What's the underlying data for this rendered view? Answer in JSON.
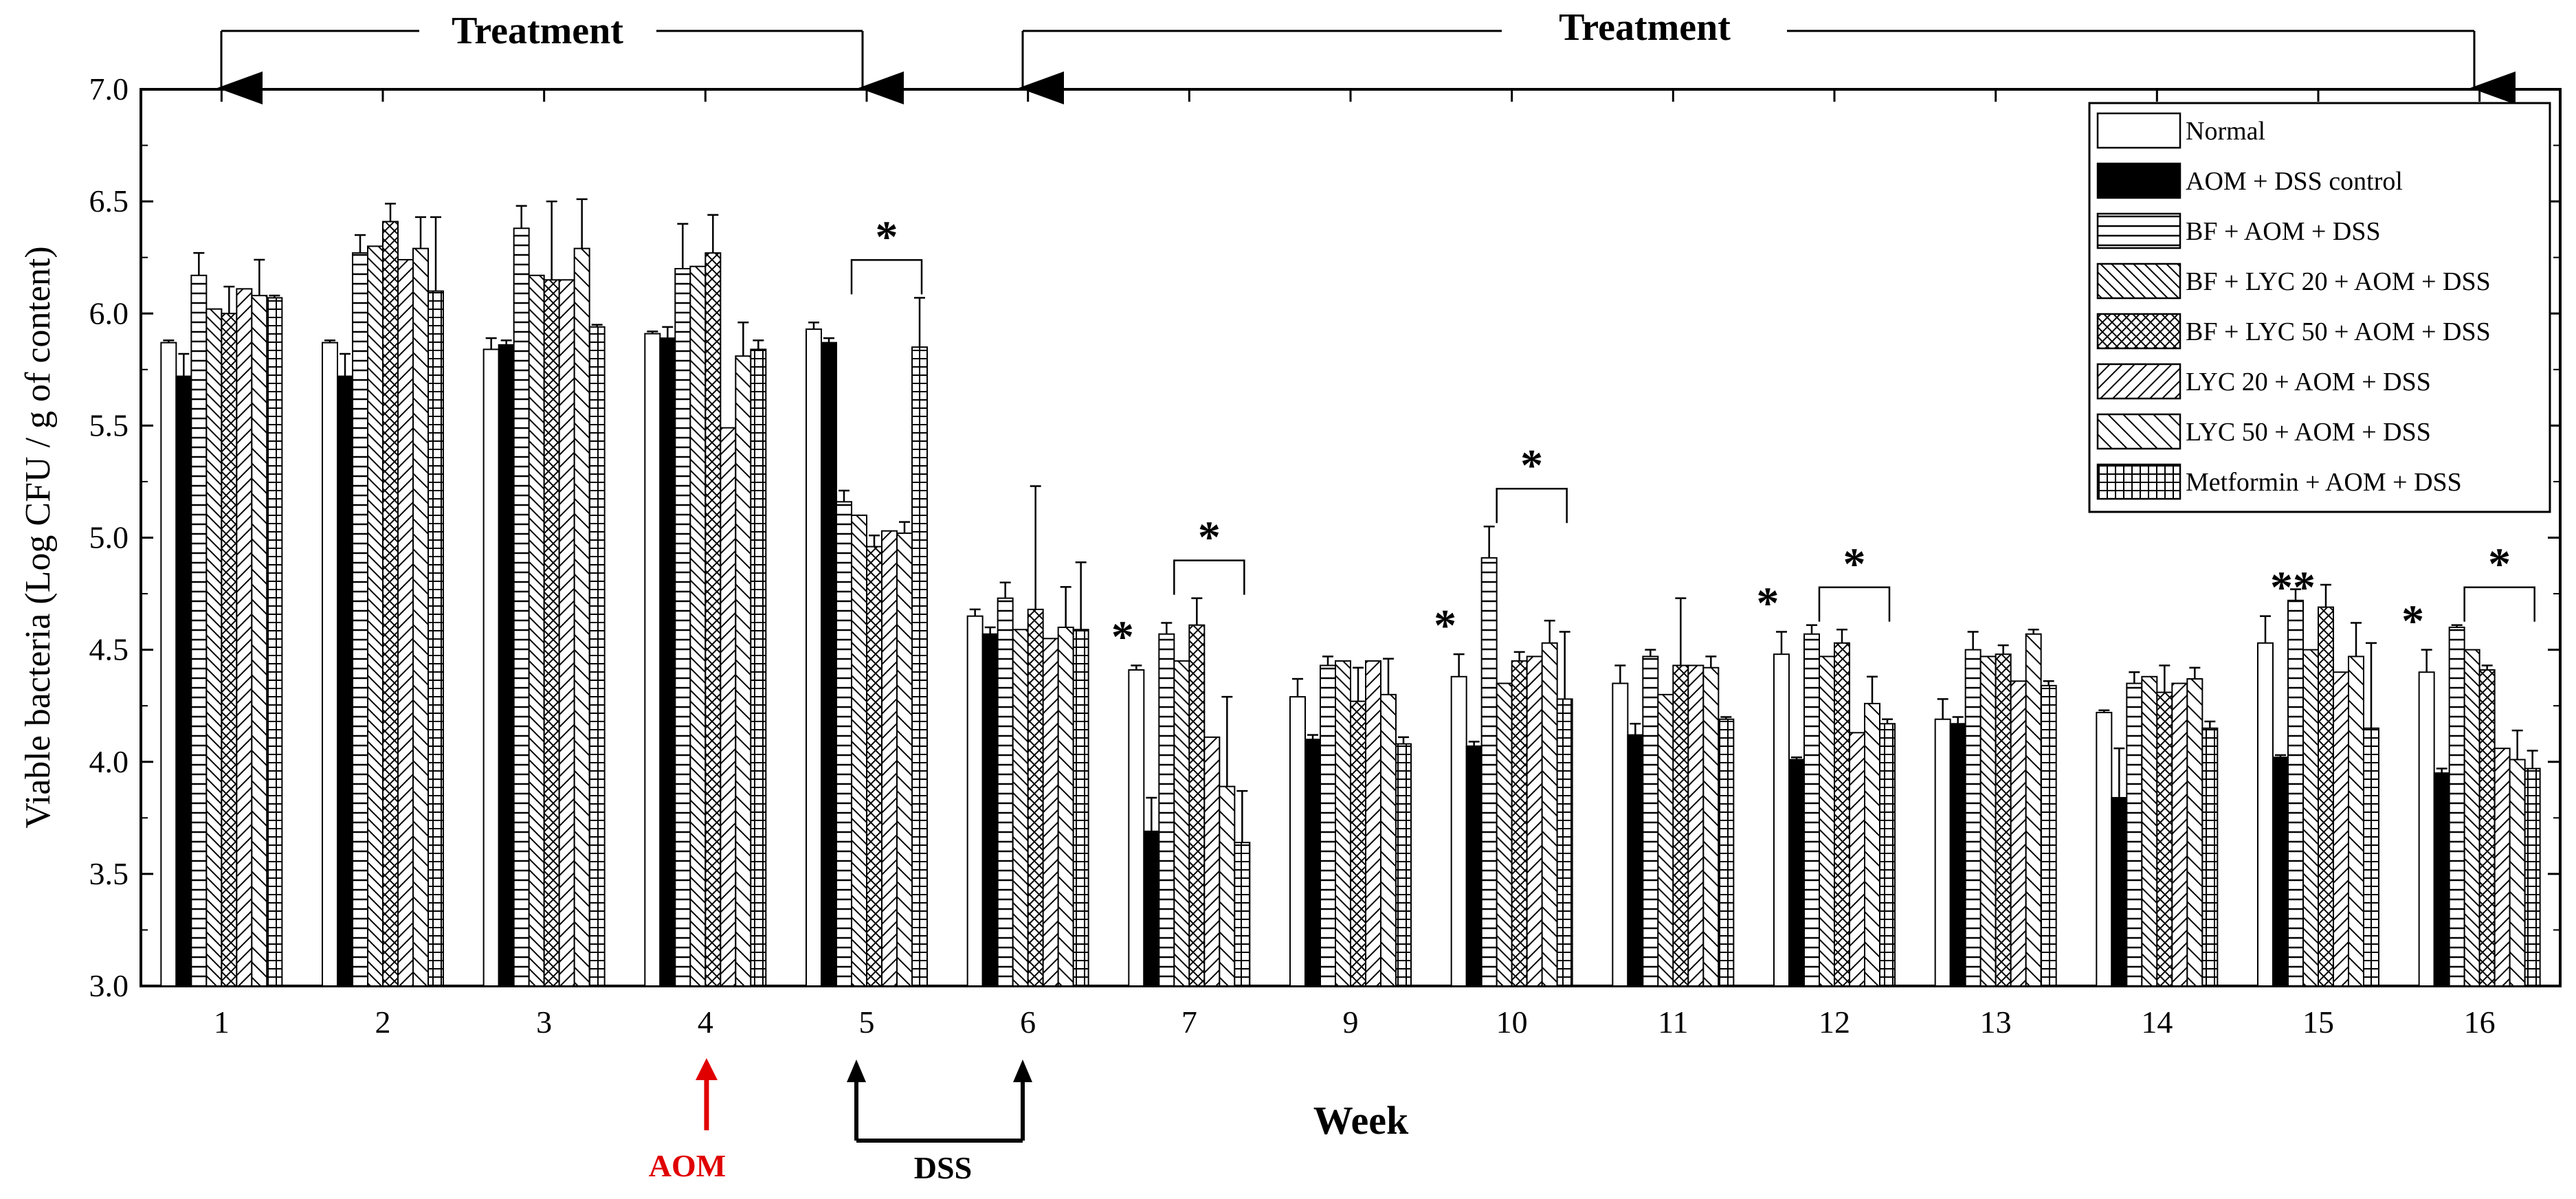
{
  "chart_data": {
    "type": "bar",
    "title": "",
    "xlabel": "Week",
    "ylabel": "Viable bacteria (Log CFU / g of content)",
    "ylim": [
      3.0,
      7.0
    ],
    "yticks": [
      "3.0",
      "3.5",
      "4.0",
      "4.5",
      "5.0",
      "5.5",
      "6.0",
      "6.5",
      "7.0"
    ],
    "categories": [
      "1",
      "2",
      "3",
      "4",
      "5",
      "6",
      "7",
      "9",
      "10",
      "11",
      "12",
      "13",
      "14",
      "15",
      "16"
    ],
    "series": [
      {
        "name": "Normal",
        "pattern": "white",
        "values": [
          5.87,
          5.87,
          5.84,
          5.91,
          5.93,
          4.65,
          4.41,
          4.29,
          4.38,
          4.35,
          4.48,
          4.19,
          4.22,
          4.53,
          4.4
        ],
        "errors": [
          0.01,
          0.01,
          0.05,
          0.01,
          0.03,
          0.03,
          0.02,
          0.08,
          0.1,
          0.08,
          0.1,
          0.09,
          0.01,
          0.12,
          0.1
        ]
      },
      {
        "name": "AOM + DSS  control",
        "pattern": "black",
        "values": [
          5.72,
          5.72,
          5.86,
          5.89,
          5.87,
          4.57,
          3.69,
          4.1,
          4.07,
          4.12,
          4.01,
          4.17,
          3.84,
          4.02,
          3.95
        ],
        "errors": [
          0.1,
          0.1,
          0.02,
          0.05,
          0.02,
          0.03,
          0.15,
          0.02,
          0.02,
          0.05,
          0.01,
          0.03,
          0.22,
          0.01,
          0.02
        ]
      },
      {
        "name": "BF + AOM + DSS",
        "pattern": "hlines",
        "values": [
          6.17,
          6.27,
          6.38,
          6.2,
          5.16,
          4.73,
          4.57,
          4.43,
          4.91,
          4.47,
          4.57,
          4.5,
          4.35,
          4.72,
          4.6
        ],
        "errors": [
          0.1,
          0.08,
          0.1,
          0.2,
          0.05,
          0.07,
          0.05,
          0.04,
          0.14,
          0.03,
          0.04,
          0.08,
          0.05,
          0.05,
          0.01
        ]
      },
      {
        "name": "BF + LYC 20 +  AOM + DSS",
        "pattern": "ldiag",
        "values": [
          6.02,
          6.3,
          6.17,
          6.21,
          5.1,
          4.59,
          4.45,
          4.45,
          4.35,
          4.3,
          4.47,
          4.47,
          4.38,
          4.5,
          4.5
        ]
      },
      {
        "name": "BF + LYC 50 +  AOM + DSS",
        "pattern": "cross",
        "values": [
          6.0,
          6.41,
          6.15,
          6.27,
          4.96,
          4.68,
          4.61,
          4.27,
          4.45,
          4.43,
          4.53,
          4.48,
          4.31,
          4.69,
          4.41
        ],
        "errors": [
          0.12,
          0.08,
          0.35,
          0.17,
          0.05,
          0.55,
          0.12,
          0.15,
          0.04,
          0.3,
          0.06,
          0.04,
          0.12,
          0.1,
          0.02
        ]
      },
      {
        "name": "LYC 20 +  AOM + DSS",
        "pattern": "rdiag",
        "values": [
          6.11,
          6.24,
          6.15,
          5.49,
          5.03,
          4.55,
          4.11,
          4.45,
          4.47,
          4.43,
          4.13,
          4.36,
          4.35,
          4.4,
          4.06
        ]
      },
      {
        "name": "LYC 50 +  AOM + DSS",
        "pattern": "ldiag2",
        "values": [
          6.08,
          6.29,
          6.29,
          5.81,
          5.02,
          4.6,
          3.89,
          4.3,
          4.53,
          4.42,
          4.26,
          4.57,
          4.37,
          4.47,
          4.01
        ],
        "errors": [
          0.16,
          0.14,
          0.22,
          0.15,
          0.05,
          0.18,
          0.4,
          0.16,
          0.1,
          0.05,
          0.12,
          0.02,
          0.05,
          0.15,
          0.13
        ]
      },
      {
        "name": "Metformin + AOM + DSS",
        "pattern": "grid",
        "values": [
          6.07,
          6.1,
          5.94,
          5.84,
          5.85,
          4.59,
          3.64,
          4.08,
          4.28,
          4.19,
          4.17,
          4.34,
          4.15,
          4.15,
          3.97
        ],
        "errors": [
          0.01,
          0.33,
          0.01,
          0.04,
          0.22,
          0.3,
          0.23,
          0.03,
          0.3,
          0.01,
          0.02,
          0.02,
          0.03,
          0.38,
          0.08
        ]
      }
    ],
    "significance_markers": [
      {
        "category": "5",
        "label": "*",
        "bracket": true
      },
      {
        "category": "7",
        "label": "*",
        "bracket": false
      },
      {
        "category": "7",
        "label": "*",
        "bracket": true
      },
      {
        "category": "10",
        "label": "*",
        "bracket": false
      },
      {
        "category": "10",
        "label": "*",
        "bracket": true
      },
      {
        "category": "12",
        "label": "*",
        "bracket": false
      },
      {
        "category": "12",
        "label": "*",
        "bracket": true
      },
      {
        "category": "15",
        "label": "**",
        "bracket": false
      },
      {
        "category": "16",
        "label": "*",
        "bracket": false
      },
      {
        "category": "16",
        "label": "*",
        "bracket": true
      }
    ],
    "annotations": {
      "treatment_label": "Treatment",
      "aom_label": "AOM",
      "dss_label": "DSS"
    },
    "legend_position": "top-right",
    "colors": {
      "aom": "#e00000",
      "ink": "#000000"
    }
  }
}
